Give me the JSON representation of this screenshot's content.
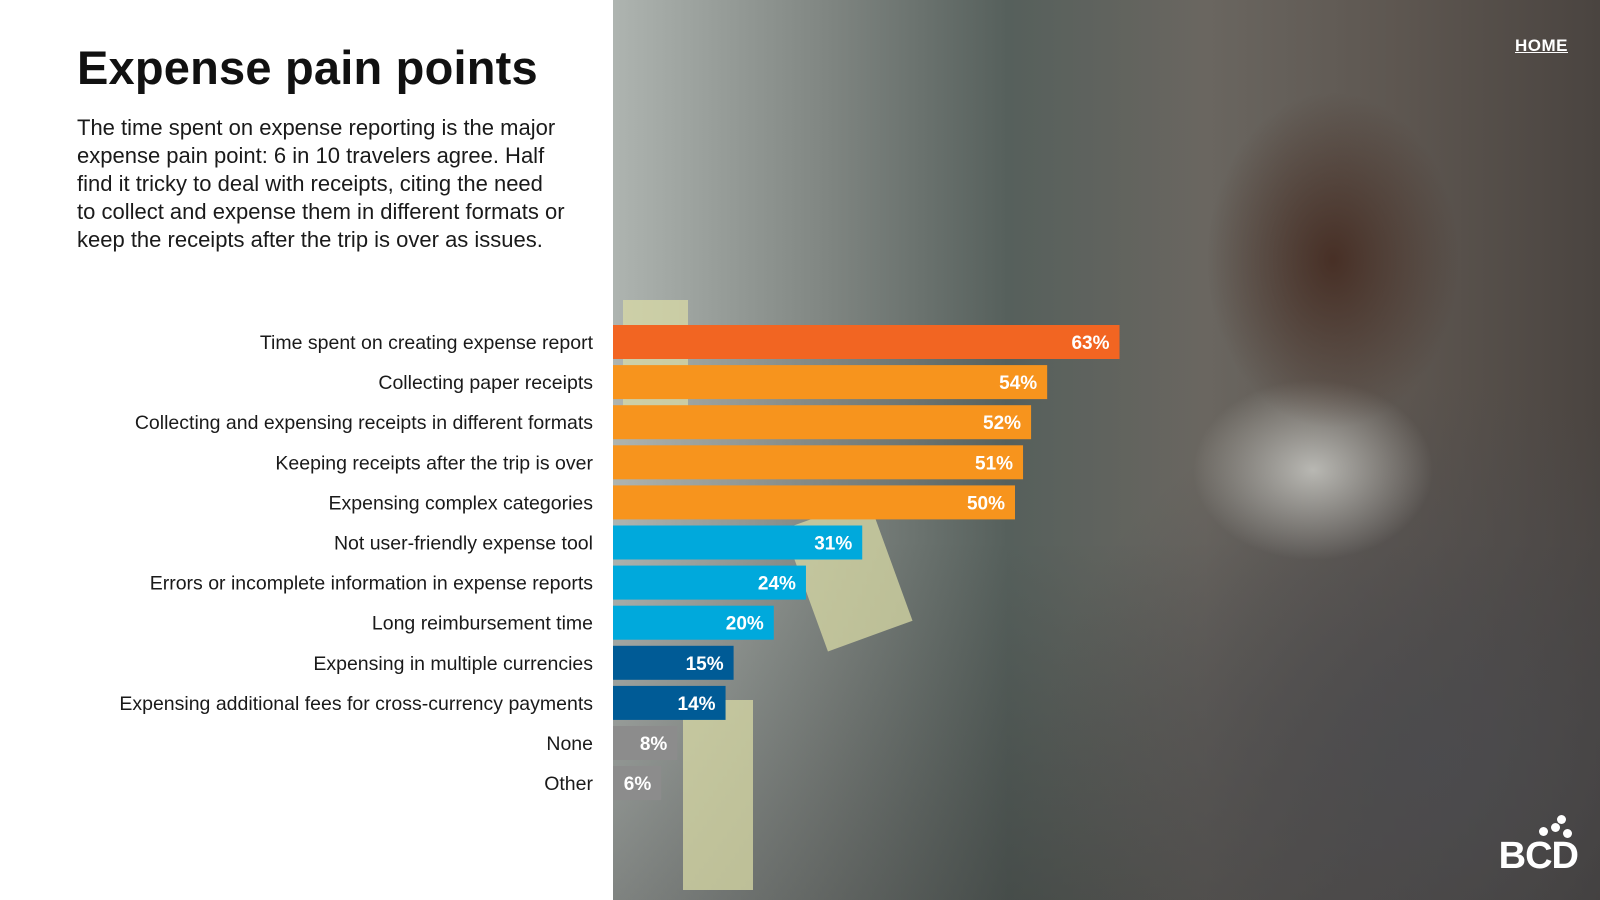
{
  "page": {
    "title": "Expense pain points",
    "intro": "The time spent on expense reporting is the major expense pain point: 6 in 10 travelers agree. Half find it tricky to deal with receipts, citing the need to collect and expense them in different formats or keep the receipts after the trip is over as issues.",
    "home_label": "HOME",
    "logo_text": "BCD"
  },
  "chart_data": {
    "type": "bar",
    "orientation": "horizontal",
    "title": "",
    "xlabel": "",
    "ylabel": "",
    "xlim": [
      0,
      100
    ],
    "value_suffix": "%",
    "categories": [
      "Time spent on creating expense report",
      "Collecting paper receipts",
      "Collecting and expensing receipts in different formats",
      "Keeping receipts after the trip is over",
      "Expensing complex categories",
      "Not user-friendly expense tool",
      "Errors or incomplete information in expense reports",
      "Long reimbursement time",
      "Expensing in multiple currencies",
      "Expensing additional fees for cross-currency payments",
      "None",
      "Other"
    ],
    "values": [
      63,
      54,
      52,
      51,
      50,
      31,
      24,
      20,
      15,
      14,
      8,
      6
    ],
    "colors": [
      "#f26522",
      "#f7941d",
      "#f7941d",
      "#f7941d",
      "#f7941d",
      "#00a9dc",
      "#00a9dc",
      "#00a9dc",
      "#005b96",
      "#005b96",
      "#8c8c8c",
      "#8c8c8c"
    ],
    "grid": false,
    "legend": "none"
  }
}
